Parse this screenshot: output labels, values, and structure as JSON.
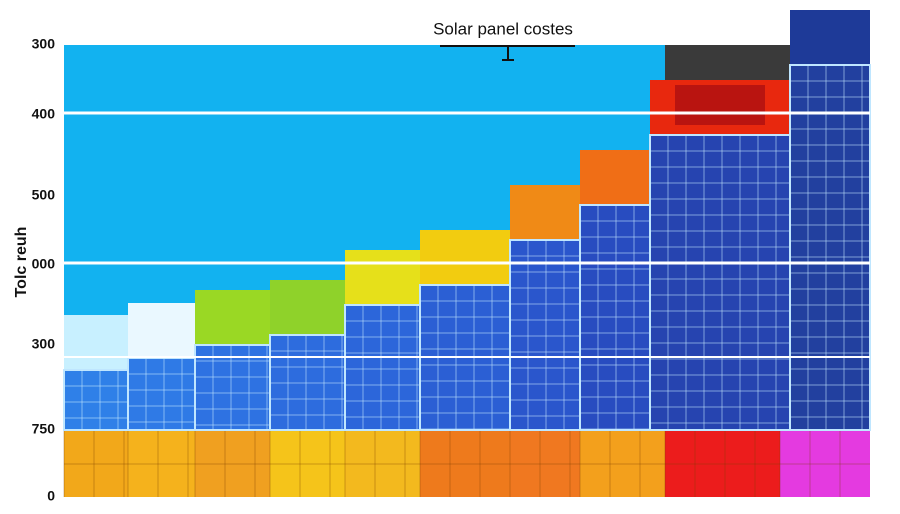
{
  "header": {
    "title": "Solar panel costes"
  },
  "axis": {
    "label": "Tolc reuh",
    "tick_labels": [
      "300",
      "400",
      "500",
      "000",
      "300",
      "750",
      "0"
    ]
  }
}
